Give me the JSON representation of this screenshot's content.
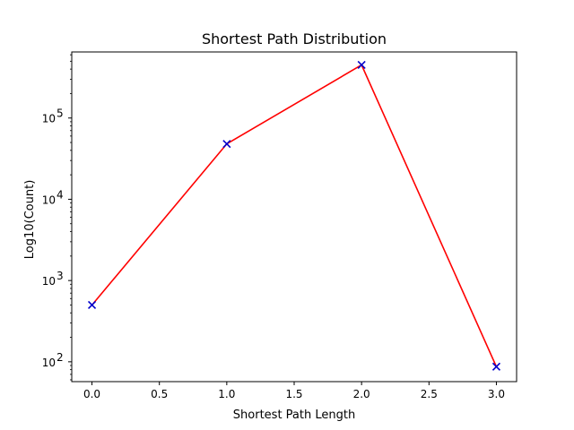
{
  "chart_data": {
    "type": "line",
    "title": "Shortest Path Distribution",
    "xlabel": "Shortest Path Length",
    "ylabel": "Log10(Count)",
    "yscale": "log",
    "xlim": [
      -0.15,
      3.15
    ],
    "ylim": [
      57,
      650000
    ],
    "xticks": [
      {
        "value": 0.0,
        "label": "0.0"
      },
      {
        "value": 0.5,
        "label": "0.5"
      },
      {
        "value": 1.0,
        "label": "1.0"
      },
      {
        "value": 1.5,
        "label": "1.5"
      },
      {
        "value": 2.0,
        "label": "2.0"
      },
      {
        "value": 2.5,
        "label": "2.5"
      },
      {
        "value": 3.0,
        "label": "3.0"
      }
    ],
    "yticks": [
      {
        "value": 100,
        "base": "10",
        "exp": "2"
      },
      {
        "value": 1000,
        "base": "10",
        "exp": "3"
      },
      {
        "value": 10000,
        "base": "10",
        "exp": "4"
      },
      {
        "value": 100000,
        "base": "10",
        "exp": "5"
      }
    ],
    "grid": false,
    "series": [
      {
        "x": [
          0,
          1,
          2,
          3
        ],
        "y": [
          500,
          48000,
          450000,
          87
        ],
        "line_color": "#ff0000",
        "marker": "x",
        "marker_color": "#0000cc"
      }
    ]
  }
}
